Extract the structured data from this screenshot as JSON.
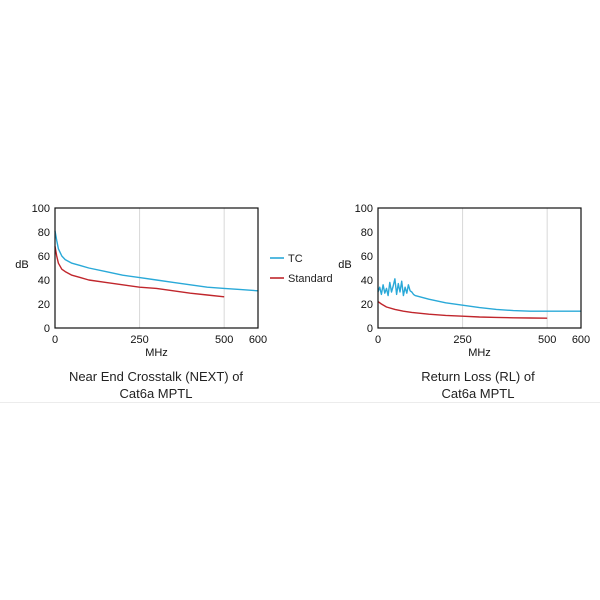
{
  "colors": {
    "tc": "#2aa9d8",
    "standard": "#c0262c",
    "axis": "#111111",
    "grid": "#d8d8d8"
  },
  "legend": {
    "tc": "TC",
    "standard": "Standard",
    "placement": "right-of-first-chart"
  },
  "chart_data": [
    {
      "type": "line",
      "caption_line1": "Near End Crosstalk (NEXT) of",
      "caption_line2": "Cat6a MPTL",
      "xlabel": "MHz",
      "ylabel": "dB",
      "xlim": [
        0,
        600
      ],
      "ylim": [
        0,
        100
      ],
      "xticks": [
        "0",
        "250",
        "500",
        "600"
      ],
      "yticks": [
        "0",
        "20",
        "40",
        "60",
        "80",
        "100"
      ],
      "grid": "vertical",
      "series": [
        {
          "name": "TC",
          "color": "#2aa9d8",
          "x": [
            0,
            5,
            10,
            20,
            30,
            50,
            75,
            100,
            150,
            200,
            250,
            300,
            350,
            400,
            450,
            500,
            550,
            600
          ],
          "y": [
            81,
            73,
            66,
            60,
            57,
            54,
            52,
            50,
            47,
            44,
            42,
            40,
            38,
            36,
            34,
            33,
            32,
            31
          ]
        },
        {
          "name": "Standard",
          "color": "#c0262c",
          "x": [
            0,
            5,
            10,
            20,
            30,
            50,
            75,
            100,
            150,
            200,
            250,
            300,
            350,
            400,
            450,
            500
          ],
          "y": [
            68,
            60,
            54,
            49,
            47,
            44,
            42,
            40,
            38,
            36,
            34,
            33,
            31,
            29,
            27.5,
            26
          ]
        }
      ]
    },
    {
      "type": "line",
      "caption_line1": "Return Loss (RL) of",
      "caption_line2": "Cat6a MPTL",
      "xlabel": "MHz",
      "ylabel": "dB",
      "xlim": [
        0,
        600
      ],
      "ylim": [
        0,
        100
      ],
      "xticks": [
        "0",
        "250",
        "500",
        "600"
      ],
      "yticks": [
        "0",
        "20",
        "40",
        "60",
        "80",
        "100"
      ],
      "grid": "vertical",
      "series": [
        {
          "name": "TC",
          "color": "#2aa9d8",
          "x": [
            0,
            5,
            10,
            15,
            20,
            25,
            30,
            35,
            40,
            45,
            50,
            55,
            60,
            65,
            70,
            75,
            80,
            85,
            90,
            95,
            100,
            105,
            110,
            150,
            200,
            250,
            300,
            350,
            400,
            450,
            500,
            550,
            600
          ],
          "y": [
            30,
            34,
            28,
            36,
            29,
            33,
            27,
            38,
            30,
            35,
            41,
            28,
            37,
            30,
            39,
            27,
            34,
            29,
            36,
            31,
            30,
            28,
            27,
            24,
            21,
            19,
            17,
            15.5,
            14.5,
            14,
            14,
            14,
            14
          ]
        },
        {
          "name": "Standard",
          "color": "#c0262c",
          "x": [
            0,
            10,
            25,
            50,
            75,
            100,
            150,
            200,
            250,
            300,
            350,
            400,
            450,
            500
          ],
          "y": [
            22,
            20,
            17.5,
            15.5,
            14,
            13,
            11.5,
            10.5,
            9.8,
            9.2,
            8.8,
            8.5,
            8.3,
            8.2
          ]
        }
      ]
    }
  ]
}
